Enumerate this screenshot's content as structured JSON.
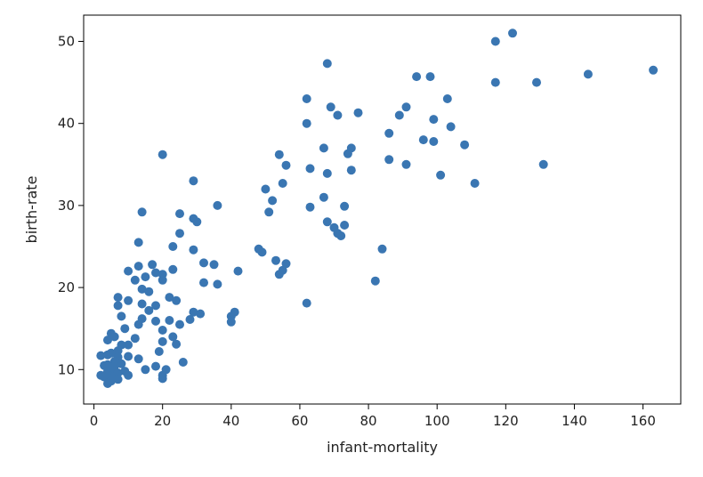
{
  "chart_data": {
    "type": "scatter",
    "title": "",
    "xlabel": "infant-mortality",
    "ylabel": "birth-rate",
    "xlim": [
      -3,
      171
    ],
    "ylim": [
      5.8,
      53.2
    ],
    "xticks": [
      0,
      20,
      40,
      60,
      80,
      100,
      120,
      140,
      160
    ],
    "yticks": [
      10,
      20,
      30,
      40,
      50
    ],
    "grid": false,
    "legend": "none",
    "marker_color": "#3a76b2",
    "points": [
      [
        117,
        50
      ],
      [
        122,
        51
      ],
      [
        163,
        46.5
      ],
      [
        144,
        46
      ],
      [
        129,
        45
      ],
      [
        117,
        45
      ],
      [
        94,
        45.7
      ],
      [
        98,
        45.7
      ],
      [
        68,
        47.3
      ],
      [
        62,
        43
      ],
      [
        69,
        42
      ],
      [
        71,
        41
      ],
      [
        77,
        41.3
      ],
      [
        62,
        40
      ],
      [
        103,
        43
      ],
      [
        91,
        42
      ],
      [
        89,
        41
      ],
      [
        99,
        40.5
      ],
      [
        104,
        39.6
      ],
      [
        86,
        38.8
      ],
      [
        96,
        38
      ],
      [
        99,
        37.8
      ],
      [
        108,
        37.4
      ],
      [
        67,
        37
      ],
      [
        75,
        37
      ],
      [
        74,
        36.3
      ],
      [
        54,
        36.2
      ],
      [
        20,
        36.2
      ],
      [
        86,
        35.6
      ],
      [
        91,
        35
      ],
      [
        131,
        35
      ],
      [
        56,
        34.9
      ],
      [
        63,
        34.5
      ],
      [
        75,
        34.3
      ],
      [
        68,
        33.9
      ],
      [
        101,
        33.7
      ],
      [
        55,
        32.7
      ],
      [
        111,
        32.7
      ],
      [
        29,
        33
      ],
      [
        50,
        32
      ],
      [
        67,
        31
      ],
      [
        52,
        30.6
      ],
      [
        51,
        29.2
      ],
      [
        63,
        29.8
      ],
      [
        73,
        29.9
      ],
      [
        36,
        30
      ],
      [
        14,
        29.2
      ],
      [
        25,
        29
      ],
      [
        29,
        28.4
      ],
      [
        30,
        28
      ],
      [
        68,
        28
      ],
      [
        70,
        27.3
      ],
      [
        73,
        27.6
      ],
      [
        71,
        26.6
      ],
      [
        72,
        26.3
      ],
      [
        25,
        26.6
      ],
      [
        23,
        25
      ],
      [
        13,
        25.5
      ],
      [
        48,
        24.7
      ],
      [
        49,
        24.3
      ],
      [
        84,
        24.7
      ],
      [
        29,
        24.6
      ],
      [
        32,
        23
      ],
      [
        35,
        22.8
      ],
      [
        53,
        23.3
      ],
      [
        56,
        22.9
      ],
      [
        55,
        22.1
      ],
      [
        42,
        22
      ],
      [
        54,
        21.6
      ],
      [
        17,
        22.8
      ],
      [
        13,
        22.6
      ],
      [
        23,
        22.2
      ],
      [
        10,
        22
      ],
      [
        18,
        21.8
      ],
      [
        20,
        21.6
      ],
      [
        15,
        21.3
      ],
      [
        12,
        20.9
      ],
      [
        20,
        20.9
      ],
      [
        32,
        20.6
      ],
      [
        36,
        20.4
      ],
      [
        82,
        20.8
      ],
      [
        14,
        19.8
      ],
      [
        16,
        19.5
      ],
      [
        22,
        18.8
      ],
      [
        24,
        18.4
      ],
      [
        7,
        18.8
      ],
      [
        10,
        18.4
      ],
      [
        7,
        17.8
      ],
      [
        14,
        18
      ],
      [
        18,
        17.8
      ],
      [
        16,
        17.2
      ],
      [
        40,
        16.5
      ],
      [
        41,
        17
      ],
      [
        29,
        17
      ],
      [
        31,
        16.8
      ],
      [
        28,
        16.1
      ],
      [
        22,
        16
      ],
      [
        8,
        16.5
      ],
      [
        14,
        16.2
      ],
      [
        18,
        15.9
      ],
      [
        25,
        15.5
      ],
      [
        40,
        15.8
      ],
      [
        62,
        18.1
      ],
      [
        13,
        15.5
      ],
      [
        9,
        15
      ],
      [
        20,
        14.8
      ],
      [
        5,
        14.4
      ],
      [
        6,
        14
      ],
      [
        23,
        14
      ],
      [
        20,
        13.4
      ],
      [
        12,
        13.8
      ],
      [
        4,
        13.6
      ],
      [
        8,
        13
      ],
      [
        10,
        13
      ],
      [
        24,
        13.1
      ],
      [
        19,
        12.2
      ],
      [
        7,
        12.3
      ],
      [
        4,
        11.8
      ],
      [
        5,
        12
      ],
      [
        2,
        11.7
      ],
      [
        7,
        11.5
      ],
      [
        10,
        11.6
      ],
      [
        13,
        11.3
      ],
      [
        6,
        11
      ],
      [
        3,
        10.5
      ],
      [
        4,
        10.6
      ],
      [
        5,
        10.3
      ],
      [
        6,
        10.4
      ],
      [
        8,
        10.7
      ],
      [
        15,
        10
      ],
      [
        18,
        10.4
      ],
      [
        21,
        10
      ],
      [
        26,
        10.9
      ],
      [
        4,
        9.8
      ],
      [
        5,
        9.7
      ],
      [
        9,
        9.8
      ],
      [
        2,
        9.3
      ],
      [
        3,
        9.1
      ],
      [
        4,
        9.4
      ],
      [
        6,
        9.2
      ],
      [
        7,
        9.6
      ],
      [
        10,
        9.3
      ],
      [
        5,
        8.6
      ],
      [
        7,
        8.8
      ],
      [
        4,
        8.3
      ],
      [
        20,
        9.3
      ],
      [
        20,
        8.9
      ]
    ]
  }
}
